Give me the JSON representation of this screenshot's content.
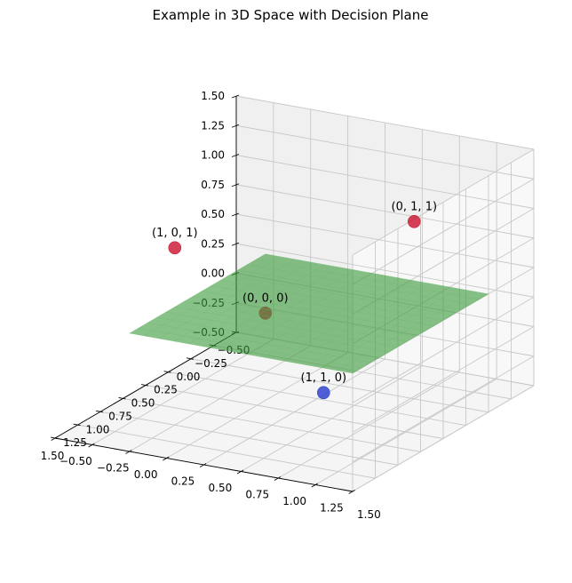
{
  "chart_data": {
    "type": "scatter",
    "projection": "3d",
    "title": "Example in 3D Space with Decision Plane",
    "xlabel": "",
    "ylabel": "",
    "zlabel": "",
    "xlim": [
      -0.5,
      1.5
    ],
    "ylim": [
      -0.5,
      1.5
    ],
    "zlim": [
      -0.5,
      1.5
    ],
    "grid": true,
    "x_tick_labels": [
      "−0.50",
      "−0.25",
      "0.00",
      "0.25",
      "0.50",
      "0.75",
      "1.00",
      "1.25",
      "1.50"
    ],
    "y_tick_labels": [
      "−0.50",
      "−0.25",
      "0.00",
      "0.25",
      "0.50",
      "0.75",
      "1.00",
      "1.25",
      "1.50"
    ],
    "z_tick_labels": [
      "−0.50",
      "−0.25",
      "0.00",
      "0.25",
      "0.50",
      "0.75",
      "1.00",
      "1.25",
      "1.50"
    ],
    "points": [
      {
        "x": 0,
        "y": 0,
        "z": 0,
        "label": "(0, 0, 0)",
        "color": "#cc1f3a"
      },
      {
        "x": 1,
        "y": 0,
        "z": 1,
        "label": "(1, 0, 1)",
        "color": "#cc1f3a"
      },
      {
        "x": 0,
        "y": 1,
        "z": 1,
        "label": "(0, 1, 1)",
        "color": "#cc1f3a"
      },
      {
        "x": 1,
        "y": 1,
        "z": 0,
        "label": "(1, 1, 0)",
        "color": "#3344cc"
      }
    ],
    "plane": {
      "z": 0.5,
      "color": "#3a9a3a",
      "opacity": 0.6
    }
  }
}
